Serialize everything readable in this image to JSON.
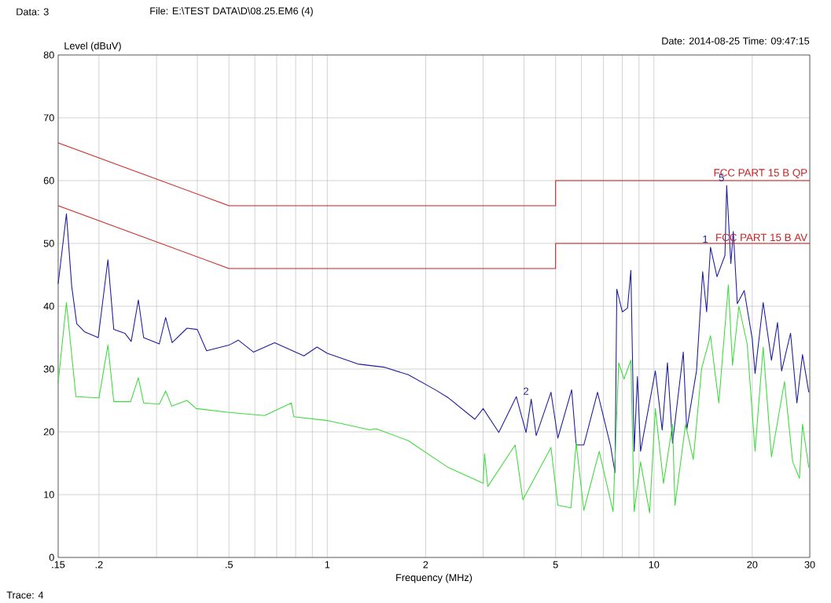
{
  "chart_data": {
    "type": "line",
    "title": "File: E:\\TEST DATA\\D\\08.25.EM6  (4)",
    "xlabel": "Frequency (MHz)",
    "ylabel": "Level (dBuV)",
    "annotations": [
      "Data: 3",
      "Date: 2014-08-25  Time: 09:47:15",
      "Trace: 4",
      {
        "text": "1",
        "x": 14.9,
        "y": 49.4
      },
      {
        "text": "2",
        "x": 4.21,
        "y": 25.2
      },
      {
        "text": "5",
        "x": 16.7,
        "y": 59.2
      }
    ],
    "log": "x",
    "xlim": [
      0.15,
      30
    ],
    "ylim": [
      0,
      80
    ],
    "xticks": [
      {
        "value": 0.15,
        "label": ".15"
      },
      {
        "value": 0.2,
        "label": ".2"
      },
      {
        "value": 0.3,
        "label": null
      },
      {
        "value": 0.4,
        "label": null
      },
      {
        "value": 0.5,
        "label": ".5"
      },
      {
        "value": 0.6,
        "label": null
      },
      {
        "value": 0.7,
        "label": null
      },
      {
        "value": 0.8,
        "label": null
      },
      {
        "value": 0.9,
        "label": null
      },
      1,
      2,
      {
        "value": 3,
        "label": null
      },
      {
        "value": 4,
        "label": null
      },
      5,
      {
        "value": 6,
        "label": null
      },
      {
        "value": 7,
        "label": null
      },
      {
        "value": 8,
        "label": null
      },
      {
        "value": 9,
        "label": null
      },
      10,
      20,
      30
    ],
    "yticks": [
      0,
      10,
      20,
      30,
      40,
      50,
      60,
      70,
      80
    ],
    "grid": true,
    "legend": false,
    "marker": "none",
    "line_style": "solid",
    "series": [
      {
        "color": "#1c1c9c",
        "x": [
          0.15,
          0.159,
          0.165,
          0.171,
          0.181,
          0.199,
          0.213,
          0.222,
          0.24,
          0.251,
          0.264,
          0.274,
          0.306,
          0.32,
          0.335,
          0.372,
          0.4,
          0.427,
          0.5,
          0.534,
          0.594,
          0.69,
          0.848,
          0.93,
          1.0,
          1.24,
          1.49,
          1.77,
          2.14,
          2.35,
          2.83,
          3.0,
          3.35,
          3.79,
          4.06,
          4.21,
          4.36,
          4.84,
          5.08,
          5.6,
          5.78,
          6.1,
          6.72,
          7.37,
          7.6,
          7.7,
          8.0,
          8.3,
          8.5,
          8.7,
          8.9,
          9.1,
          10.1,
          10.6,
          11.0,
          11.4,
          12.3,
          12.6,
          13.5,
          14.1,
          14.5,
          14.9,
          15.6,
          16.5,
          16.7,
          17.2,
          17.5,
          18.0,
          18.9,
          20.0,
          20.4,
          21.6,
          22.9,
          23.9,
          24.6,
          26.2,
          27.4,
          28.5,
          29.8
        ],
        "values": [
          43.6,
          54.7,
          43.2,
          37.2,
          35.9,
          35.0,
          47.4,
          36.3,
          35.7,
          34.4,
          41.0,
          35.0,
          34.0,
          38.2,
          34.2,
          36.5,
          36.3,
          32.9,
          33.8,
          34.6,
          32.7,
          34.2,
          32.1,
          33.5,
          32.5,
          30.8,
          30.3,
          29.1,
          26.7,
          25.4,
          22.0,
          23.7,
          19.9,
          25.6,
          19.9,
          25.2,
          19.4,
          26.3,
          19.0,
          26.7,
          17.9,
          17.9,
          26.3,
          17.7,
          13.5,
          42.7,
          39.1,
          39.7,
          45.7,
          16.9,
          28.8,
          16.9,
          29.7,
          20.3,
          31.0,
          18.2,
          32.7,
          20.3,
          29.7,
          45.5,
          39.1,
          49.4,
          44.7,
          48.1,
          59.2,
          46.8,
          51.9,
          40.4,
          42.5,
          34.8,
          29.3,
          40.6,
          31.4,
          37.4,
          29.7,
          35.7,
          24.6,
          32.3,
          26.3
        ]
      },
      {
        "color": "#3ddc3d",
        "x": [
          0.15,
          0.159,
          0.17,
          0.2,
          0.213,
          0.222,
          0.25,
          0.264,
          0.274,
          0.306,
          0.32,
          0.334,
          0.372,
          0.397,
          0.5,
          0.643,
          0.776,
          0.79,
          1.0,
          1.35,
          1.41,
          1.77,
          2.35,
          3.0,
          3.03,
          3.1,
          3.76,
          3.97,
          4.84,
          5.08,
          5.57,
          5.78,
          6.1,
          6.8,
          7.5,
          7.8,
          8.1,
          8.5,
          8.7,
          9.1,
          9.7,
          10.1,
          10.7,
          11.4,
          11.6,
          12.5,
          13.2,
          14.0,
          14.9,
          15.8,
          16.9,
          17.4,
          18.2,
          19.3,
          20.4,
          21.6,
          22.9,
          25.1,
          26.6,
          27.9,
          28.5,
          29.8
        ],
        "values": [
          27.8,
          40.6,
          25.6,
          25.4,
          33.8,
          24.8,
          24.8,
          28.6,
          24.6,
          24.4,
          26.5,
          24.1,
          25.0,
          23.7,
          23.1,
          22.6,
          24.6,
          22.4,
          21.8,
          20.3,
          20.5,
          18.6,
          14.3,
          11.8,
          16.5,
          11.3,
          17.9,
          9.2,
          17.5,
          8.3,
          7.9,
          18.2,
          7.5,
          16.9,
          7.3,
          31.0,
          28.4,
          31.4,
          7.3,
          15.2,
          7.1,
          23.7,
          11.8,
          21.2,
          8.3,
          21.2,
          15.6,
          30.1,
          35.3,
          24.6,
          43.4,
          30.6,
          40.0,
          34.0,
          16.9,
          33.5,
          16.0,
          28.0,
          15.2,
          12.6,
          21.2,
          14.3
        ]
      },
      {
        "name": "FCC PART 15 B QP",
        "color": "#cc2222",
        "x": [
          0.15,
          0.5,
          5,
          5,
          30
        ],
        "values": [
          66,
          56,
          56,
          60,
          60
        ]
      },
      {
        "name": "FCC PART 15 B AV",
        "color": "#cc2222",
        "x": [
          0.15,
          0.5,
          5,
          5,
          30
        ],
        "values": [
          56,
          46,
          46,
          50,
          50
        ]
      }
    ]
  }
}
